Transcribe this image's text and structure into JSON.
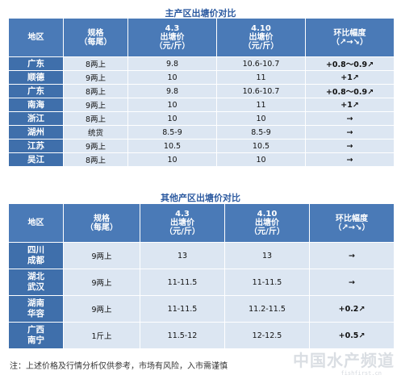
{
  "table1": {
    "title": "主产区出塘价对比",
    "headers": {
      "region": "地区",
      "spec": [
        "规格",
        "（每尾）"
      ],
      "date1": [
        "4.3",
        "出塘价",
        "（元/斤）"
      ],
      "date2": [
        "4.10",
        "出塘价",
        "（元/斤）"
      ],
      "change": [
        "环比幅度",
        "（↗→↘）"
      ]
    },
    "rows": [
      {
        "region": "广东",
        "spec": "8两上",
        "price1": "9.8",
        "price2": "10.6-10.7",
        "change": "+0.8～0.9↗"
      },
      {
        "region": "顺德",
        "spec": "9两上",
        "price1": "10",
        "price2": "11",
        "change": "+1↗"
      },
      {
        "region": "广东",
        "spec": "8两上",
        "price1": "9.8",
        "price2": "10.6-10.7",
        "change": "+0.8～0.9↗"
      },
      {
        "region": "南海",
        "spec": "9两上",
        "price1": "10",
        "price2": "11",
        "change": "+1↗"
      },
      {
        "region": "浙江",
        "spec": "8两上",
        "price1": "10",
        "price2": "10",
        "change": "→"
      },
      {
        "region": "湖州",
        "spec": "统货",
        "price1": "8.5-9",
        "price2": "8.5-9",
        "change": "→"
      },
      {
        "region": "江苏",
        "spec": "9两上",
        "price1": "10.5",
        "price2": "10.5",
        "change": "→"
      },
      {
        "region": "吴江",
        "spec": "8两上",
        "price1": "10",
        "price2": "10",
        "change": "→"
      }
    ]
  },
  "table2": {
    "title": "其他产区出塘价对比",
    "headers": {
      "region": "地区",
      "spec": [
        "规格",
        "（每尾）"
      ],
      "date1": [
        "4.3",
        "出塘价",
        "（元/斤）"
      ],
      "date2": [
        "4.10",
        "出塘价",
        "（元/斤）"
      ],
      "change": [
        "环比幅度",
        "（↗→↘）"
      ]
    },
    "rows": [
      {
        "region": [
          "四川",
          "成都"
        ],
        "spec": "9两上",
        "price1": "13",
        "price2": "13",
        "change": "→"
      },
      {
        "region": [
          "湖北",
          "武汉"
        ],
        "spec": "9两上",
        "price1": "11-11.5",
        "price2": "11-11.5",
        "change": "→"
      },
      {
        "region": [
          "湖南",
          "华容"
        ],
        "spec": "9两上",
        "price1": "11-11.5",
        "price2": "11.2-11.5",
        "change": "+0.2↗"
      },
      {
        "region": [
          "广西",
          "南宁"
        ],
        "spec": "1斤上",
        "price1": "11.5-12",
        "price2": "12-12.5",
        "change": "+0.5↗"
      }
    ]
  },
  "note": "注：上述价格及行情分析仅供参考，市场有风险，入市需谨慎",
  "watermark": {
    "main": "中国水产频道",
    "sub": "fishfirst.cn"
  },
  "colors": {
    "header": "#4a7ab7",
    "region": "#3f6fab",
    "cell": "#dce6f2",
    "up": "#e31414",
    "title": "#2c5aa0"
  }
}
